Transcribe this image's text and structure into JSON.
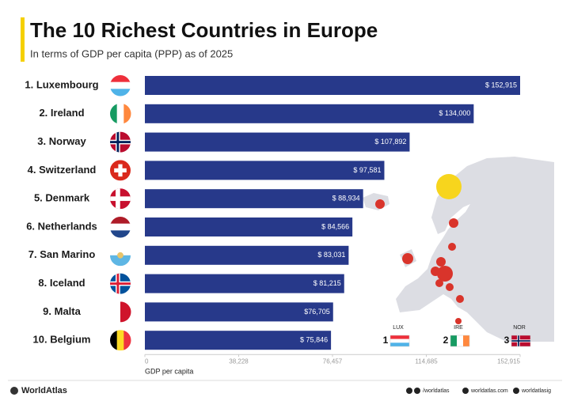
{
  "chart_data": {
    "type": "bar",
    "orientation": "horizontal",
    "title": "The 10 Richest Countries in Europe",
    "subtitle": "In terms of GDP per capita (PPP) as of 2025",
    "categories": [
      "1. Luxembourg",
      "2. Ireland",
      "3. Norway",
      "4. Switzerland",
      "5. Denmark",
      "6. Netherlands",
      "7. San Marino",
      "8. Iceland",
      "9. Malta",
      "10. Belgium"
    ],
    "values": [
      152915,
      134000,
      107892,
      97581,
      88934,
      84566,
      83031,
      81215,
      76705,
      75846
    ],
    "value_labels": [
      "$ 152,915",
      "$ 134,000",
      "$ 107,892",
      "$ 97,581",
      "$ 88,934",
      "$ 84,566",
      "$ 83,031",
      "$ 81,215",
      "$76,705",
      "$ 75,846"
    ],
    "color": "#27398a",
    "xlim": [
      0,
      152915
    ],
    "xticks": [
      0,
      {
        "value": 38228,
        "label": "38,228"
      },
      {
        "value": 76457,
        "label": "76,457"
      },
      {
        "value": 114685,
        "label": "114,685"
      },
      {
        "value": 152915,
        "label": "152,915"
      }
    ],
    "x_label": "GDP per capita"
  },
  "legend": [
    {
      "rank": "1",
      "label": "LUX"
    },
    {
      "rank": "2",
      "label": "IRE"
    },
    {
      "rank": "3",
      "label": "NOR"
    }
  ],
  "footer": {
    "brand": "WorldAtlas",
    "facebook": "/worldatlas",
    "site": "worldatlas.com",
    "instagram": "worldatlasig"
  }
}
